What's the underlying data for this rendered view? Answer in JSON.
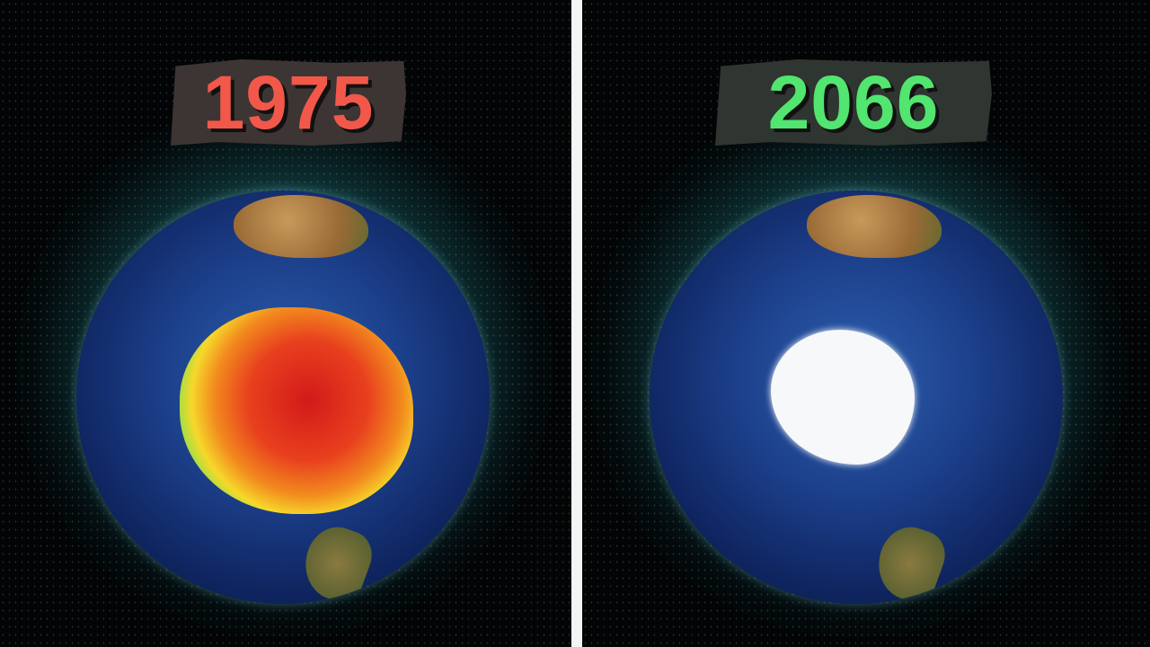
{
  "left": {
    "year": "1975",
    "year_color": "#f2584a",
    "ozone_hole": true
  },
  "right": {
    "year": "2066",
    "year_color": "#52e56f",
    "ozone_hole": false
  },
  "colors": {
    "divider": "#f4f4f4",
    "label_bg": "#3c3533",
    "ocean": "#1c3f8a",
    "glow": "#287878"
  }
}
